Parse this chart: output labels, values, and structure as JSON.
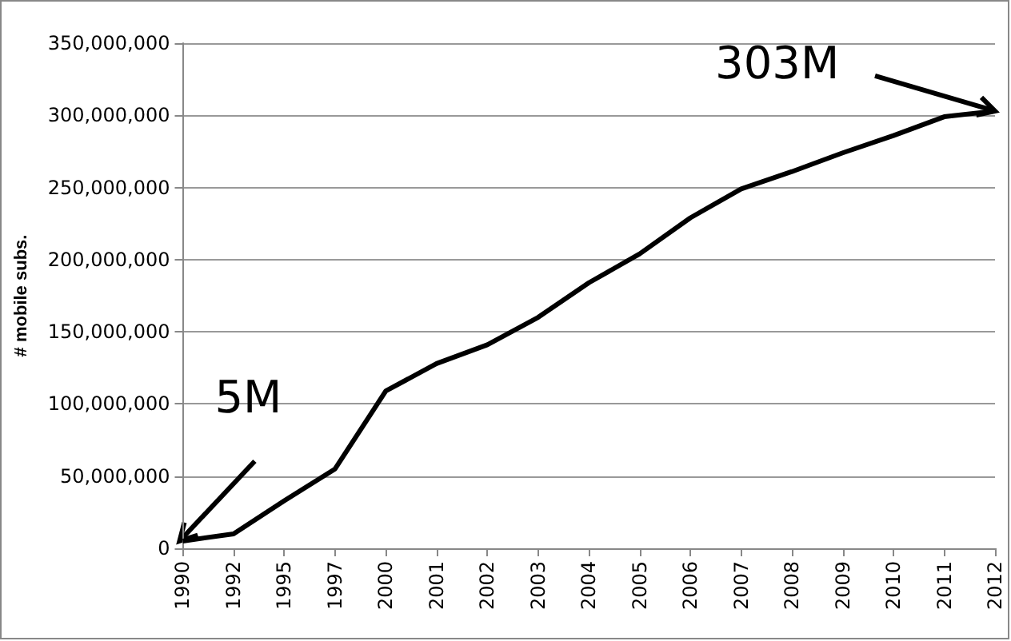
{
  "chart_data": {
    "type": "line",
    "ylabel": "# mobile subs.",
    "categories": [
      "1990",
      "1992",
      "1995",
      "1997",
      "2000",
      "2001",
      "2002",
      "2003",
      "2004",
      "2005",
      "2006",
      "2007",
      "2008",
      "2009",
      "2010",
      "2011",
      "2012"
    ],
    "series": [
      {
        "color": "#000000",
        "values": [
          5000000,
          10000000,
          33000000,
          55000000,
          109000000,
          128000000,
          141000000,
          160000000,
          184000000,
          204000000,
          229000000,
          249000000,
          261000000,
          274000000,
          286000000,
          299000000,
          303000000
        ]
      }
    ],
    "ylim": [
      0,
      350000000
    ],
    "yticks": [
      {
        "value": 0,
        "label": "0"
      },
      {
        "value": 50000000,
        "label": "50,000,000"
      },
      {
        "value": 100000000,
        "label": "100,000,000"
      },
      {
        "value": 150000000,
        "label": "150,000,000"
      },
      {
        "value": 200000000,
        "label": "200,000,000"
      },
      {
        "value": 250000000,
        "label": "250,000,000"
      },
      {
        "value": 300000000,
        "label": "300,000,000"
      },
      {
        "value": 350000000,
        "label": "350,000,000"
      }
    ],
    "grid": "y",
    "marker": "none",
    "line_style": "solid",
    "annotations": [
      {
        "text": "5M",
        "x": "1990",
        "y": 5000000
      },
      {
        "text": "303M",
        "x": "2012",
        "y": 303000000
      }
    ]
  }
}
